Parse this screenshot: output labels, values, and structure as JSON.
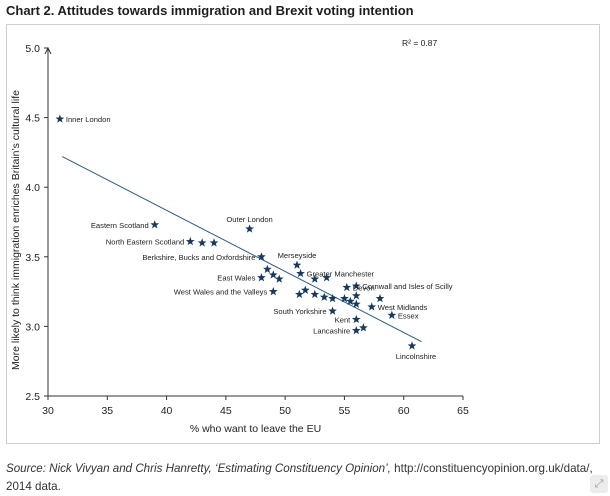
{
  "title": "Chart 2. Attitudes towards immigration and Brexit voting intention",
  "source": {
    "text": "Source: Nick Vivyan and Chris Hanretty, ‘Estimating Constituency Opinion’,",
    "link": "http://constituencyopinion.org.uk/data/",
    "tail": ", 2014 data."
  },
  "icons": {
    "corner": "expand-icon"
  },
  "colors": {
    "marker": "#173a5e",
    "line": "#2d5b86",
    "axis": "#333333"
  },
  "chart_data": {
    "type": "scatter",
    "title": "Chart 2. Attitudes towards immigration and Brexit voting intention",
    "xlabel": "% who want to leave the EU",
    "ylabel": "More likely to think immigration enriches Britain’s cultural life",
    "xlim": [
      30,
      65
    ],
    "ylim": [
      2.5,
      5.0
    ],
    "xticks": [
      30,
      35,
      40,
      45,
      50,
      55,
      60,
      65
    ],
    "yticks": [
      2.5,
      3.0,
      3.5,
      4.0,
      4.5,
      5.0
    ],
    "r2_label": "R² = 0.87",
    "trendline": {
      "x1": 31.2,
      "y1": 4.22,
      "x2": 61.5,
      "y2": 2.89
    },
    "points": [
      {
        "x": 31.0,
        "y": 4.49,
        "label": "Inner London"
      },
      {
        "x": 39.0,
        "y": 3.73,
        "label": "Eastern Scotland"
      },
      {
        "x": 47.0,
        "y": 3.7,
        "label": "Outer London"
      },
      {
        "x": 42.0,
        "y": 3.61,
        "label": "North Eastern Scotland"
      },
      {
        "x": 43.0,
        "y": 3.6,
        "label": ""
      },
      {
        "x": 44.0,
        "y": 3.6,
        "label": ""
      },
      {
        "x": 48.0,
        "y": 3.5,
        "label": "Berkshire, Bucks and Oxfordshire"
      },
      {
        "x": 51.0,
        "y": 3.44,
        "label": "Merseyside"
      },
      {
        "x": 48.5,
        "y": 3.41,
        "label": ""
      },
      {
        "x": 51.3,
        "y": 3.38,
        "label": "Greater Manchester"
      },
      {
        "x": 49.0,
        "y": 3.37,
        "label": ""
      },
      {
        "x": 48.0,
        "y": 3.35,
        "label": "East Wales"
      },
      {
        "x": 49.5,
        "y": 3.34,
        "label": ""
      },
      {
        "x": 52.5,
        "y": 3.34,
        "label": ""
      },
      {
        "x": 53.5,
        "y": 3.35,
        "label": ""
      },
      {
        "x": 56.0,
        "y": 3.29,
        "label": "Cornwall and Isles of Scilly"
      },
      {
        "x": 55.2,
        "y": 3.28,
        "label": "Devon"
      },
      {
        "x": 49.0,
        "y": 3.25,
        "label": "West Wales and the Valleys"
      },
      {
        "x": 51.2,
        "y": 3.23,
        "label": ""
      },
      {
        "x": 51.7,
        "y": 3.26,
        "label": ""
      },
      {
        "x": 52.5,
        "y": 3.23,
        "label": ""
      },
      {
        "x": 53.3,
        "y": 3.21,
        "label": ""
      },
      {
        "x": 54.0,
        "y": 3.2,
        "label": ""
      },
      {
        "x": 55.0,
        "y": 3.2,
        "label": ""
      },
      {
        "x": 55.5,
        "y": 3.18,
        "label": ""
      },
      {
        "x": 56.0,
        "y": 3.22,
        "label": ""
      },
      {
        "x": 56.0,
        "y": 3.16,
        "label": ""
      },
      {
        "x": 58.0,
        "y": 3.2,
        "label": ""
      },
      {
        "x": 57.3,
        "y": 3.14,
        "label": "West Midlands"
      },
      {
        "x": 54.0,
        "y": 3.11,
        "label": "South Yorkshire"
      },
      {
        "x": 59.0,
        "y": 3.08,
        "label": "Essex"
      },
      {
        "x": 56.0,
        "y": 3.05,
        "label": "Kent"
      },
      {
        "x": 56.0,
        "y": 2.97,
        "label": "Lancashire"
      },
      {
        "x": 56.6,
        "y": 2.99,
        "label": ""
      },
      {
        "x": 60.7,
        "y": 2.86,
        "label": "Lincolnshire"
      }
    ]
  }
}
